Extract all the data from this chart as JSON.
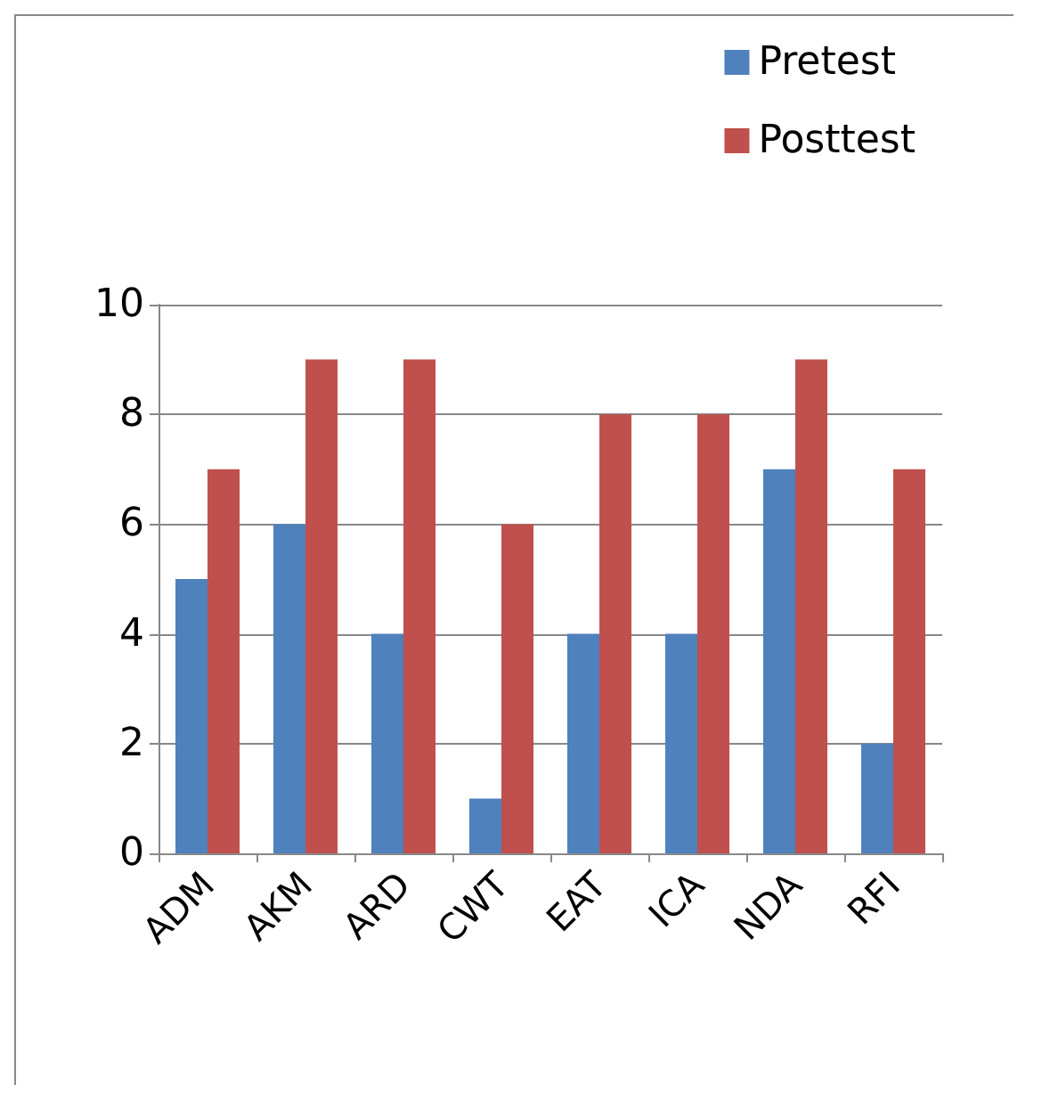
{
  "chart_data": {
    "type": "bar",
    "categories": [
      "ADM",
      "AKM",
      "ARD",
      "CWT",
      "EAT",
      "ICA",
      "NDA",
      "RFI"
    ],
    "series": [
      {
        "name": "Pretest",
        "color": "#4f81bd",
        "values": [
          5,
          6,
          4,
          1,
          4,
          4,
          7,
          2
        ]
      },
      {
        "name": "Posttest",
        "color": "#c0504d",
        "values": [
          7,
          9,
          9,
          6,
          8,
          8,
          9,
          7
        ]
      }
    ],
    "ylim": [
      0,
      10
    ],
    "yticks": [
      0,
      2,
      4,
      6,
      8,
      10
    ],
    "grid": "y",
    "legend": "top right"
  }
}
